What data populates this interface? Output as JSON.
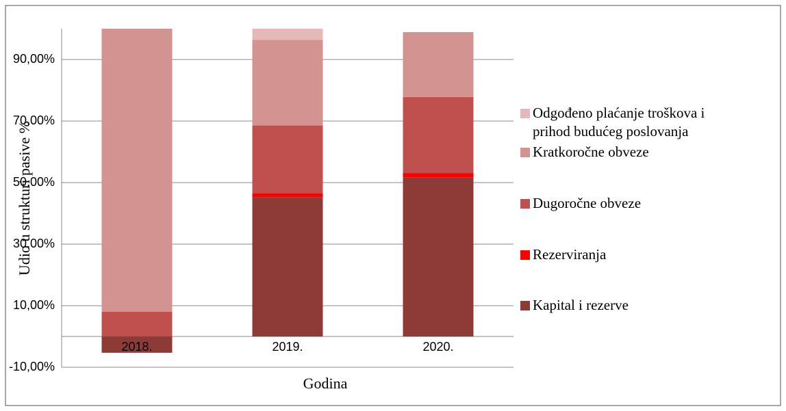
{
  "chart_data": {
    "type": "stacked_bar",
    "x_label": "Godina",
    "y_label": "Udio u strukturi pasive %",
    "categories": [
      "2018.",
      "2019.",
      "2020."
    ],
    "series": [
      {
        "name": "Kapital i rezerve",
        "color": "#8e3a37",
        "values": [
          -5.3,
          45.3,
          51.6
        ]
      },
      {
        "name": "Rezerviranja",
        "color": "#ff0000",
        "values": [
          0,
          1.3,
          1.5
        ]
      },
      {
        "name": "Dugoročne obveze",
        "color": "#c0504d",
        "values": [
          8,
          22,
          24.7
        ]
      },
      {
        "name": "Kratkoročne obveze",
        "color": "#d39391",
        "values": [
          92,
          27.8,
          21.1
        ]
      },
      {
        "name": "Odgođeno plaćanje troškova i prihod budućeg poslovanja",
        "color": "#e6b9b8",
        "values": [
          0,
          3.6,
          0
        ]
      }
    ],
    "ylim": [
      -10,
      100
    ],
    "yticks": [
      {
        "value": -10,
        "label": "-10,00%"
      },
      {
        "value": 10,
        "label": "10,00%"
      },
      {
        "value": 30,
        "label": "30,00%"
      },
      {
        "value": 50,
        "label": "50,00%"
      },
      {
        "value": 70,
        "label": "70,00%"
      },
      {
        "value": 90,
        "label": "90,00%"
      }
    ],
    "grid": true,
    "legend": "right"
  }
}
